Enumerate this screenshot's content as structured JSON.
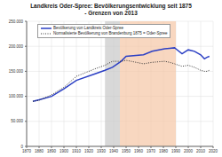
{
  "chart_data": {
    "type": "line",
    "title": "Landkreis Oder-Spree: Bevölkerungsentwicklung seit 1875",
    "subtitle": "- Grenzen von 2013",
    "x": [
      1875,
      1880,
      1890,
      1900,
      1910,
      1925,
      1933,
      1939,
      1946,
      1950,
      1964,
      1971,
      1981,
      1985,
      1989,
      1990,
      1995,
      2000,
      2005,
      2010,
      2013,
      2015,
      2017
    ],
    "series": [
      {
        "name": "Bevölkerung von Landkreis Oder-Spree",
        "color": "#2b3fc4",
        "line_style": "solid",
        "values": [
          90000,
          93000,
          100000,
          115000,
          132000,
          145000,
          152000,
          158000,
          170000,
          180000,
          183000,
          190000,
          195000,
          196000,
          197000,
          195000,
          185000,
          193000,
          190000,
          183000,
          175000,
          178000,
          180000
        ]
      },
      {
        "name": "Normalisierte Bevölkerung von Brandenburg 1875 = Oder-Spree",
        "color": "#333333",
        "line_style": "dotted",
        "values": [
          90000,
          92000,
          103000,
          118000,
          140000,
          155000,
          162000,
          170000,
          170000,
          172000,
          165000,
          168000,
          170000,
          168000,
          165000,
          164000,
          160000,
          162000,
          158000,
          152000,
          150000,
          150000,
          152000
        ]
      }
    ],
    "periods": [
      {
        "start": 1933,
        "end": 1945,
        "color": "#c8c8c8"
      },
      {
        "start": 1945,
        "end": 1990,
        "color": "#f5c6a5"
      }
    ],
    "xlim": [
      1870,
      2020
    ],
    "xticks": [
      1870,
      1880,
      1890,
      1900,
      1910,
      1920,
      1930,
      1940,
      1950,
      1960,
      1970,
      1980,
      1990,
      2000,
      2010,
      2020
    ],
    "ylim": [
      0,
      250000
    ],
    "yticks": [
      0,
      {
        "value": 50000,
        "label": "50.000"
      },
      {
        "value": 100000,
        "label": "100.000"
      },
      {
        "value": 150000,
        "label": "150.000"
      },
      {
        "value": 200000,
        "label": "200.000"
      },
      {
        "value": 250000,
        "label": "250.000"
      }
    ],
    "grid": true,
    "legend": "top-left"
  }
}
